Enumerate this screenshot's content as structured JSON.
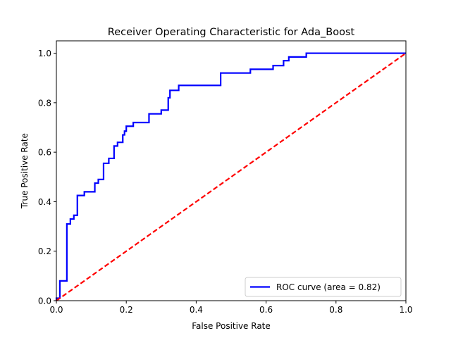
{
  "chart_data": {
    "type": "line",
    "title": "Receiver Operating Characteristic for Ada_Boost",
    "xlabel": "False Positive Rate",
    "ylabel": "True Positive Rate",
    "xlim": [
      0.0,
      1.0
    ],
    "ylim": [
      0.0,
      1.05
    ],
    "xticks": [
      0.0,
      0.2,
      0.4,
      0.6,
      0.8,
      1.0
    ],
    "yticks": [
      0.0,
      0.2,
      0.4,
      0.6,
      0.8,
      1.0
    ],
    "xtick_labels": [
      "0.0",
      "0.2",
      "0.4",
      "0.6",
      "0.8",
      "1.0"
    ],
    "ytick_labels": [
      "0.0",
      "0.2",
      "0.4",
      "0.6",
      "0.8",
      "1.0"
    ],
    "grid": false,
    "legend_position": "lower-right",
    "series": [
      {
        "name": "ROC curve (area = 0.82)",
        "color": "#0000ff",
        "style": "solid",
        "x": [
          0.0,
          0.0,
          0.01,
          0.01,
          0.03,
          0.03,
          0.03,
          0.03,
          0.04,
          0.04,
          0.05,
          0.05,
          0.06,
          0.06,
          0.06,
          0.07,
          0.07,
          0.08,
          0.08,
          0.1,
          0.1,
          0.11,
          0.11,
          0.12,
          0.12,
          0.135,
          0.135,
          0.15,
          0.15,
          0.165,
          0.165,
          0.175,
          0.175,
          0.19,
          0.19,
          0.195,
          0.195,
          0.2,
          0.2,
          0.22,
          0.22,
          0.265,
          0.265,
          0.3,
          0.3,
          0.32,
          0.32,
          0.325,
          0.325,
          0.35,
          0.35,
          0.47,
          0.47,
          0.555,
          0.555,
          0.62,
          0.62,
          0.65,
          0.65,
          0.665,
          0.665,
          0.715,
          0.715,
          1.0
        ],
        "y": [
          0.0,
          0.01,
          0.01,
          0.08,
          0.08,
          0.2,
          0.25,
          0.31,
          0.31,
          0.33,
          0.33,
          0.345,
          0.345,
          0.36,
          0.425,
          0.425,
          0.425,
          0.425,
          0.44,
          0.44,
          0.44,
          0.44,
          0.475,
          0.475,
          0.49,
          0.49,
          0.555,
          0.555,
          0.575,
          0.575,
          0.625,
          0.625,
          0.64,
          0.64,
          0.67,
          0.67,
          0.685,
          0.685,
          0.705,
          0.705,
          0.72,
          0.72,
          0.755,
          0.755,
          0.77,
          0.77,
          0.82,
          0.82,
          0.85,
          0.85,
          0.87,
          0.87,
          0.92,
          0.92,
          0.935,
          0.935,
          0.95,
          0.95,
          0.97,
          0.97,
          0.985,
          0.985,
          1.0,
          1.0
        ]
      },
      {
        "name": "",
        "color": "#ff0000",
        "style": "dashed",
        "x": [
          0.0,
          1.0
        ],
        "y": [
          0.0,
          1.0
        ]
      }
    ],
    "legend": [
      {
        "label": "ROC curve (area = 0.82)",
        "color": "#0000ff"
      }
    ]
  }
}
